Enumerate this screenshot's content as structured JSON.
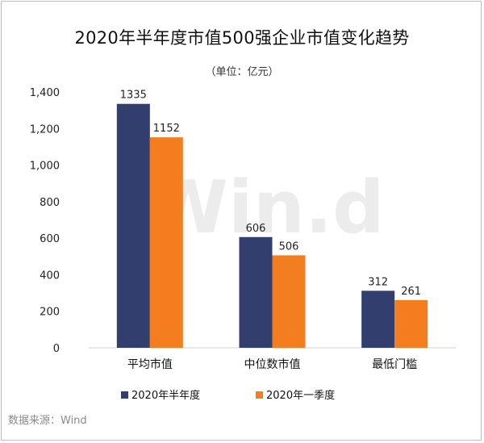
{
  "title": "2020年半年度市值500强企业市值变化趋势",
  "subtitle": "（单位：亿元）",
  "source": "数据来源：Wind",
  "watermark": "Win.d",
  "colors": {
    "series1": "#313e6e",
    "series2": "#f47d20"
  },
  "chart_data": {
    "type": "bar",
    "categories": [
      "平均市值",
      "中位数市值",
      "最低门槛"
    ],
    "series": [
      {
        "name": "2020年半年度",
        "values": [
          1335,
          606,
          312
        ]
      },
      {
        "name": "2020年一季度",
        "values": [
          1152,
          506,
          261
        ]
      }
    ],
    "ylim": [
      0,
      1400
    ],
    "yticks": [
      0,
      200,
      400,
      600,
      800,
      1000,
      1200,
      1400
    ],
    "ytick_labels": [
      "0",
      "200",
      "400",
      "600",
      "800",
      "1,000",
      "1,200",
      "1,400"
    ],
    "title": "2020年半年度市值500强企业市值变化趋势",
    "subtitle": "（单位：亿元）",
    "legend_position": "bottom",
    "grid": false
  }
}
